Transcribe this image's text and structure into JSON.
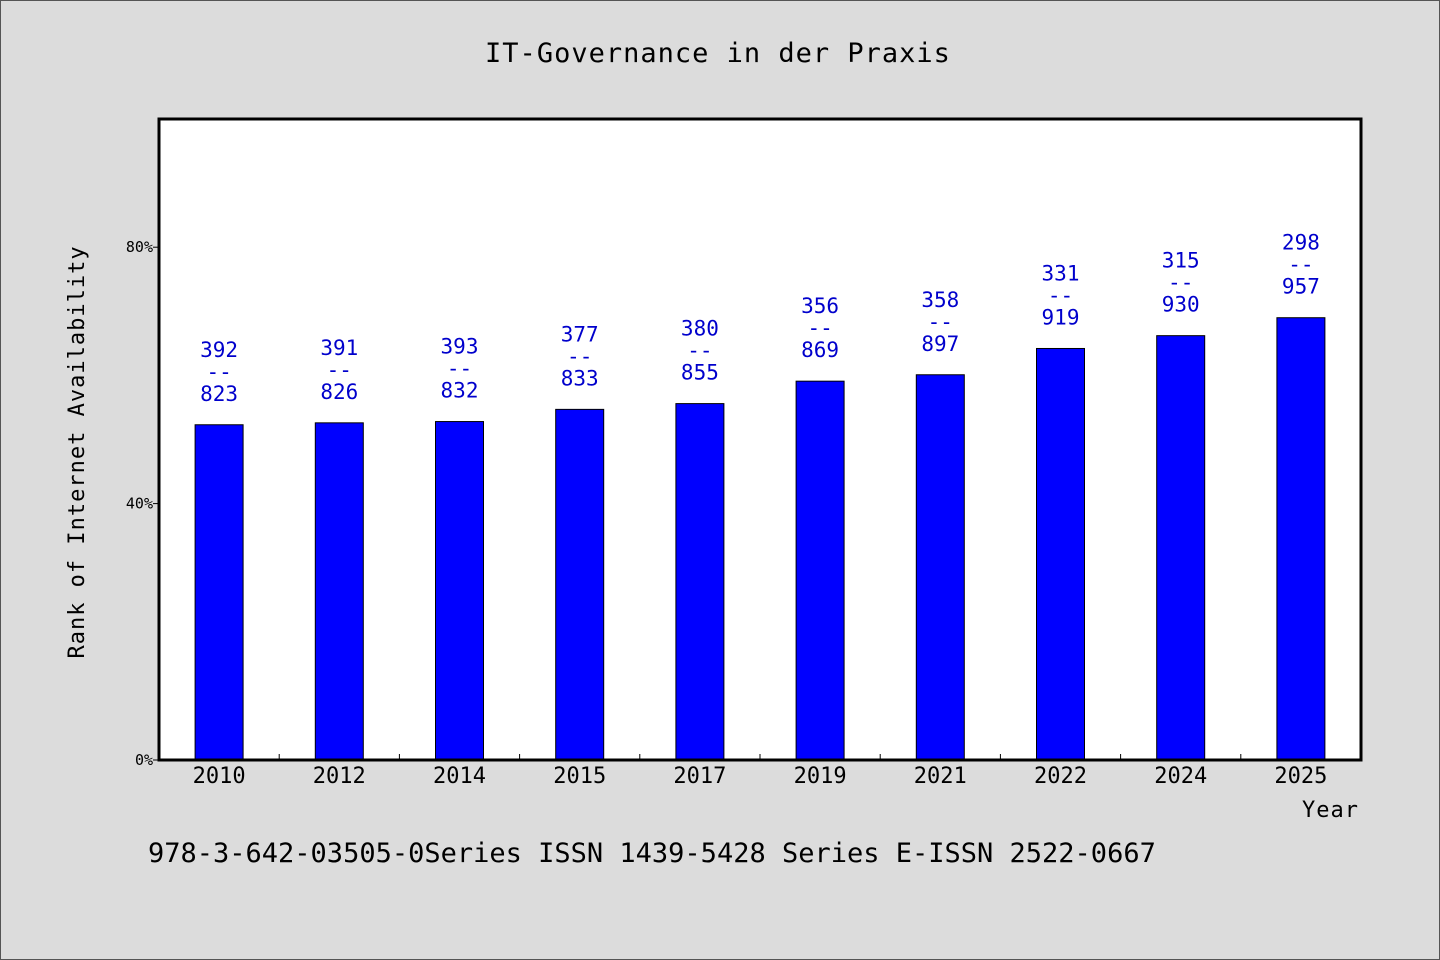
{
  "chart_data": {
    "type": "bar",
    "title": "IT-Governance in der Praxis",
    "xlabel": "Year",
    "ylabel": "Rank of Internet Availability",
    "categories": [
      "2010",
      "2012",
      "2014",
      "2015",
      "2017",
      "2019",
      "2021",
      "2022",
      "2024",
      "2025"
    ],
    "series": [
      {
        "values": [
          52.3,
          52.6,
          52.8,
          54.7,
          55.6,
          59.1,
          60.1,
          64.2,
          66.2,
          69.0
        ],
        "color": "#0000ff"
      }
    ],
    "value_labels": [
      [
        "392",
        "--",
        "823"
      ],
      [
        "391",
        "--",
        "826"
      ],
      [
        "393",
        "--",
        "832"
      ],
      [
        "377",
        "--",
        "833"
      ],
      [
        "380",
        "--",
        "855"
      ],
      [
        "356",
        "--",
        "869"
      ],
      [
        "358",
        "--",
        "897"
      ],
      [
        "331",
        "--",
        "919"
      ],
      [
        "315",
        "--",
        "930"
      ],
      [
        "298",
        "--",
        "957"
      ]
    ],
    "ylim": [
      0,
      100
    ],
    "yticks": [
      0,
      40,
      80
    ],
    "ytick_labels": [
      "0%",
      "40%",
      "80%"
    ],
    "grid": false,
    "legend": "none"
  },
  "footer": "978-3-642-03505-0Series ISSN 1439-5428 Series E-ISSN 2522-0667",
  "colors": {
    "background": "#dcdcdc",
    "plot_area": "#ffffff",
    "bar": "#0000ff",
    "label": "#0000cc"
  }
}
